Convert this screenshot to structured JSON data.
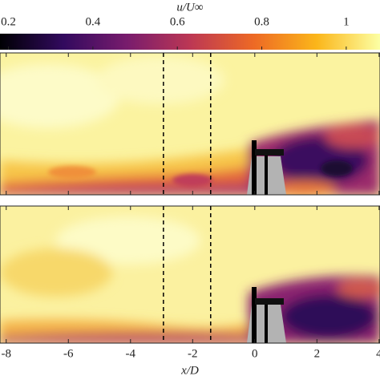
{
  "chart_data": {
    "type": "heatmap",
    "colorbar_label": "u/U∞",
    "clim": [
      0.18,
      1.08
    ],
    "colorbar_ticks": [
      0.4,
      0.6,
      0.8,
      1,
      {
        "value": 0.2,
        "label": "0.2"
      }
    ],
    "colormap": [
      "#000004",
      "#320a5e",
      "#781c6d",
      "#bc3754",
      "#ed6925",
      "#fbb61a",
      "#fcffa4"
    ],
    "xlabel": "x/D",
    "xlim": [
      -8.2,
      4.03
    ],
    "xticks": [
      -8,
      -6,
      -4,
      -2,
      0,
      2,
      4
    ],
    "vlines": [
      -2.94,
      -1.42
    ]
  }
}
